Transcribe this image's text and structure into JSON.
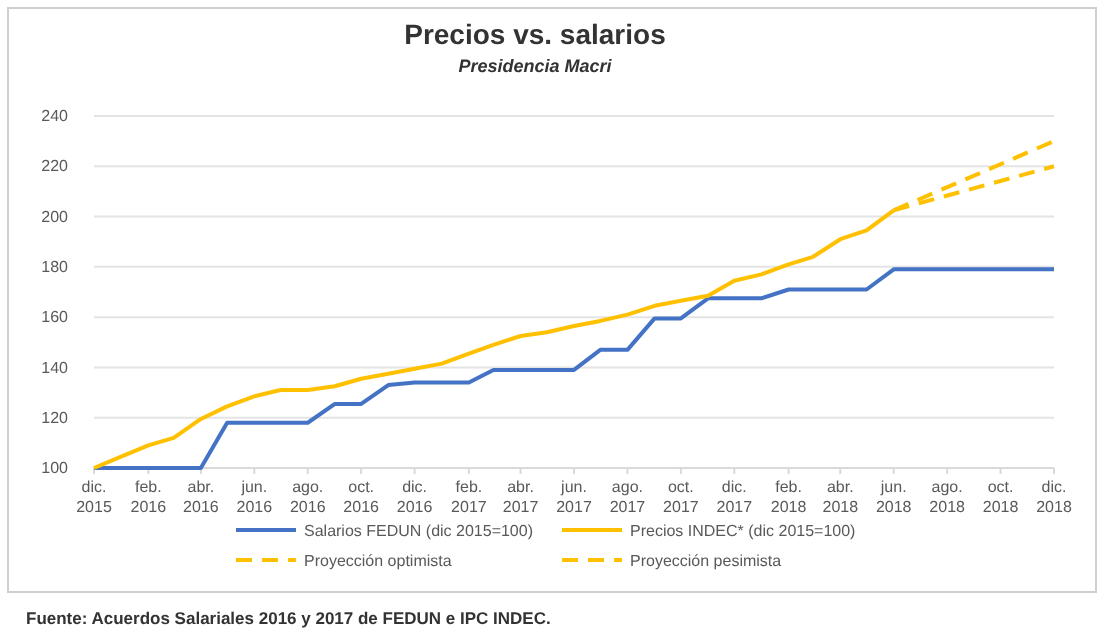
{
  "chart_data": {
    "type": "line",
    "title": "Precios vs. salarios",
    "subtitle": "Presidencia Macri",
    "x": [
      "2015-12",
      "2016-01",
      "2016-02",
      "2016-03",
      "2016-04",
      "2016-05",
      "2016-06",
      "2016-07",
      "2016-08",
      "2016-09",
      "2016-10",
      "2016-11",
      "2016-12",
      "2017-01",
      "2017-02",
      "2017-03",
      "2017-04",
      "2017-05",
      "2017-06",
      "2017-07",
      "2017-08",
      "2017-09",
      "2017-10",
      "2017-11",
      "2017-12",
      "2018-01",
      "2018-02",
      "2018-03",
      "2018-04",
      "2018-05",
      "2018-06",
      "2018-07",
      "2018-08",
      "2018-09",
      "2018-10",
      "2018-11",
      "2018-12"
    ],
    "series": [
      {
        "name": "Salarios FEDUN (dic 2015=100)",
        "color": "#4472c4",
        "line_style": "solid",
        "values": [
          100,
          100,
          100,
          100,
          100,
          118,
          118,
          118,
          118,
          125.5,
          125.5,
          133,
          134,
          134,
          134,
          139,
          139,
          139,
          139,
          147,
          147,
          159.5,
          159.5,
          167.5,
          167.5,
          167.5,
          171,
          171,
          171,
          171,
          179,
          179,
          179,
          179,
          179,
          179,
          179
        ]
      },
      {
        "name": "Precios INDEC* (dic 2015=100)",
        "color": "#ffc000",
        "line_style": "solid",
        "values": [
          100,
          104.5,
          109,
          112,
          119.5,
          124.5,
          128.5,
          131,
          131,
          132.5,
          135.5,
          137.5,
          139.5,
          141.5,
          145.5,
          149,
          152.5,
          154,
          156.5,
          158.5,
          161,
          164.5,
          166.5,
          168.5,
          174.5,
          177,
          181,
          184,
          191,
          194.5,
          202.5,
          null,
          null,
          null,
          null,
          null,
          null
        ]
      },
      {
        "name": "Proyección optimista",
        "color": "#ffc000",
        "line_style": "dashed",
        "x": [
          "2018-06",
          "2018-12"
        ],
        "values": [
          202.5,
          220
        ]
      },
      {
        "name": "Proyección pesimista",
        "color": "#ffc000",
        "line_style": "dashed",
        "x": [
          "2018-06",
          "2018-12"
        ],
        "values": [
          202.5,
          230
        ]
      }
    ],
    "xlim": [
      "2015-12",
      "2018-12"
    ],
    "xticks": [
      {
        "value": "2015-12",
        "label": "dic. 2015"
      },
      {
        "value": "2016-02",
        "label": "feb. 2016"
      },
      {
        "value": "2016-04",
        "label": "abr. 2016"
      },
      {
        "value": "2016-06",
        "label": "jun. 2016"
      },
      {
        "value": "2016-08",
        "label": "ago. 2016"
      },
      {
        "value": "2016-10",
        "label": "oct. 2016"
      },
      {
        "value": "2016-12",
        "label": "dic. 2016"
      },
      {
        "value": "2017-02",
        "label": "feb. 2017"
      },
      {
        "value": "2017-04",
        "label": "abr. 2017"
      },
      {
        "value": "2017-06",
        "label": "jun. 2017"
      },
      {
        "value": "2017-08",
        "label": "ago. 2017"
      },
      {
        "value": "2017-10",
        "label": "oct. 2017"
      },
      {
        "value": "2017-12",
        "label": "dic. 2017"
      },
      {
        "value": "2018-02",
        "label": "feb. 2018"
      },
      {
        "value": "2018-04",
        "label": "abr. 2018"
      },
      {
        "value": "2018-06",
        "label": "jun. 2018"
      },
      {
        "value": "2018-08",
        "label": "ago. 2018"
      },
      {
        "value": "2018-10",
        "label": "oct. 2018"
      },
      {
        "value": "2018-12",
        "label": "dic. 2018"
      }
    ],
    "ylim": [
      100,
      240
    ],
    "yticks": [
      100,
      120,
      140,
      160,
      180,
      200,
      220,
      240
    ],
    "grid": "y",
    "legend": "bottom",
    "marker": "none",
    "annotations": [
      "Fuente: Acuerdos Salariales 2016 y 2017 de FEDUN e IPC INDEC."
    ]
  }
}
